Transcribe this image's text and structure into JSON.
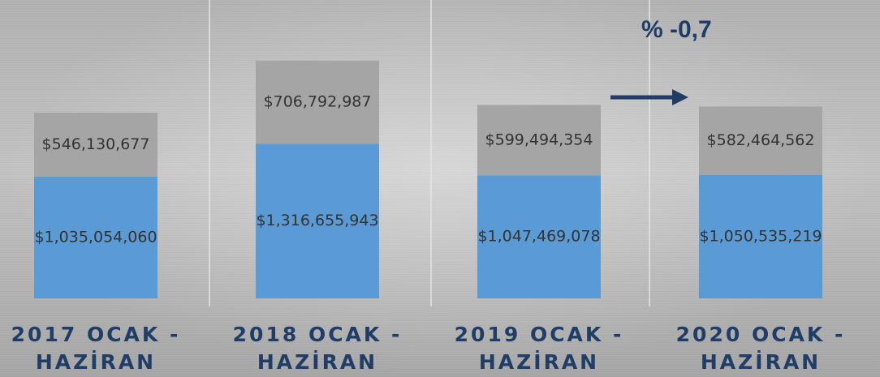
{
  "chart_data": {
    "type": "stacked_bar",
    "categories": [
      "2017 OCAK - HAZİRAN",
      "2018 OCAK - HAZİRAN",
      "2019 OCAK - HAZİRAN",
      "2020 OCAK - HAZİRAN"
    ],
    "series": [
      {
        "name": null,
        "color": "#5b9bd5",
        "values": [
          1035054060,
          1316655943,
          1047469078,
          1050535219
        ],
        "value_labels": [
          "$1,035,054,060",
          "$1,316,655,943",
          "$1,047,469,078",
          "$1,050,535,219"
        ]
      },
      {
        "name": null,
        "color": "#a5a5a5",
        "values": [
          546130677,
          706792987,
          599494354,
          582464562
        ],
        "value_labels": [
          "$546,130,677",
          "$706,792,987",
          "$599,494,354",
          "$582,464,562"
        ]
      }
    ],
    "ylim": [
      0,
      2540000000
    ],
    "annotation": "% -0,7"
  }
}
